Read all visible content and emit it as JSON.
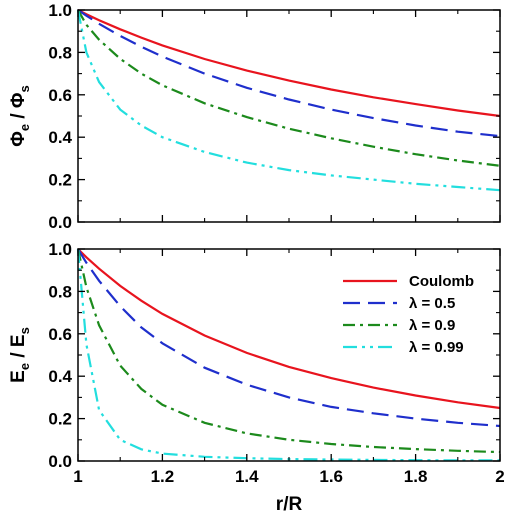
{
  "chart_data": [
    {
      "type": "line",
      "panel": "top",
      "ylabel_main": "Φ",
      "ylabel_sub1": "e",
      "ylabel_sep": " / ",
      "ylabel_main2": "Φ",
      "ylabel_sub2": "s",
      "xlabel": "",
      "xlim": [
        1,
        2
      ],
      "ylim": [
        0,
        1
      ],
      "xticks": [
        "1",
        "1.2",
        "1.4",
        "1.6",
        "1.8",
        "2"
      ],
      "yticks": [
        "0.0",
        "0.2",
        "0.4",
        "0.6",
        "0.8",
        "1.0"
      ],
      "x": [
        1.0,
        1.02,
        1.05,
        1.1,
        1.15,
        1.2,
        1.3,
        1.4,
        1.5,
        1.6,
        1.7,
        1.8,
        1.9,
        2.0
      ],
      "series": [
        {
          "key": "coulomb",
          "color": "#e8141e",
          "dash": "solid",
          "values": [
            1.0,
            0.98,
            0.952,
            0.909,
            0.87,
            0.833,
            0.769,
            0.714,
            0.667,
            0.625,
            0.588,
            0.556,
            0.526,
            0.5
          ]
        },
        {
          "key": "lam05",
          "color": "#1f2fcc",
          "dash": "dash",
          "values": [
            1.0,
            0.973,
            0.935,
            0.878,
            0.827,
            0.78,
            0.7,
            0.633,
            0.578,
            0.53,
            0.49,
            0.455,
            0.426,
            0.405
          ]
        },
        {
          "key": "lam09",
          "color": "#1c8a1c",
          "dash": "dashdot",
          "values": [
            1.0,
            0.93,
            0.86,
            0.77,
            0.7,
            0.645,
            0.56,
            0.495,
            0.44,
            0.395,
            0.355,
            0.32,
            0.29,
            0.265
          ]
        },
        {
          "key": "lam099",
          "color": "#22dede",
          "dash": "dashdotdot",
          "values": [
            1.0,
            0.8,
            0.66,
            0.53,
            0.455,
            0.4,
            0.33,
            0.28,
            0.245,
            0.22,
            0.2,
            0.18,
            0.165,
            0.15
          ]
        }
      ]
    },
    {
      "type": "line",
      "panel": "bottom",
      "ylabel_main": "E",
      "ylabel_sub1": "e",
      "ylabel_sep": " / ",
      "ylabel_main2": "E",
      "ylabel_sub2": "s",
      "xlabel": "r/R",
      "xlim": [
        1,
        2
      ],
      "ylim": [
        0,
        1
      ],
      "xticks": [
        "1",
        "1.2",
        "1.4",
        "1.6",
        "1.8",
        "2"
      ],
      "yticks": [
        "0.0",
        "0.2",
        "0.4",
        "0.6",
        "0.8",
        "1.0"
      ],
      "legend_position": "top-right",
      "x": [
        1.0,
        1.02,
        1.05,
        1.1,
        1.15,
        1.2,
        1.3,
        1.4,
        1.5,
        1.6,
        1.7,
        1.8,
        1.9,
        2.0
      ],
      "series": [
        {
          "key": "coulomb",
          "name": "Coulomb",
          "color": "#e8141e",
          "dash": "solid",
          "values": [
            1.0,
            0.961,
            0.907,
            0.826,
            0.756,
            0.694,
            0.592,
            0.51,
            0.444,
            0.391,
            0.346,
            0.309,
            0.277,
            0.25
          ]
        },
        {
          "key": "lam05",
          "name": "λ = 0.5",
          "color": "#1f2fcc",
          "dash": "dash",
          "values": [
            1.0,
            0.935,
            0.85,
            0.73,
            0.63,
            0.555,
            0.44,
            0.36,
            0.3,
            0.255,
            0.225,
            0.2,
            0.18,
            0.165
          ]
        },
        {
          "key": "lam09",
          "name": "λ = 0.9",
          "color": "#1c8a1c",
          "dash": "dashdot",
          "values": [
            1.0,
            0.82,
            0.64,
            0.45,
            0.34,
            0.265,
            0.18,
            0.13,
            0.1,
            0.08,
            0.066,
            0.056,
            0.048,
            0.042
          ]
        },
        {
          "key": "lam099",
          "name": "λ = 0.99",
          "color": "#22dede",
          "dash": "dashdotdot",
          "values": [
            1.0,
            0.55,
            0.24,
            0.1,
            0.055,
            0.035,
            0.02,
            0.013,
            0.009,
            0.007,
            0.005,
            0.004,
            0.003,
            0.003
          ]
        }
      ]
    }
  ]
}
